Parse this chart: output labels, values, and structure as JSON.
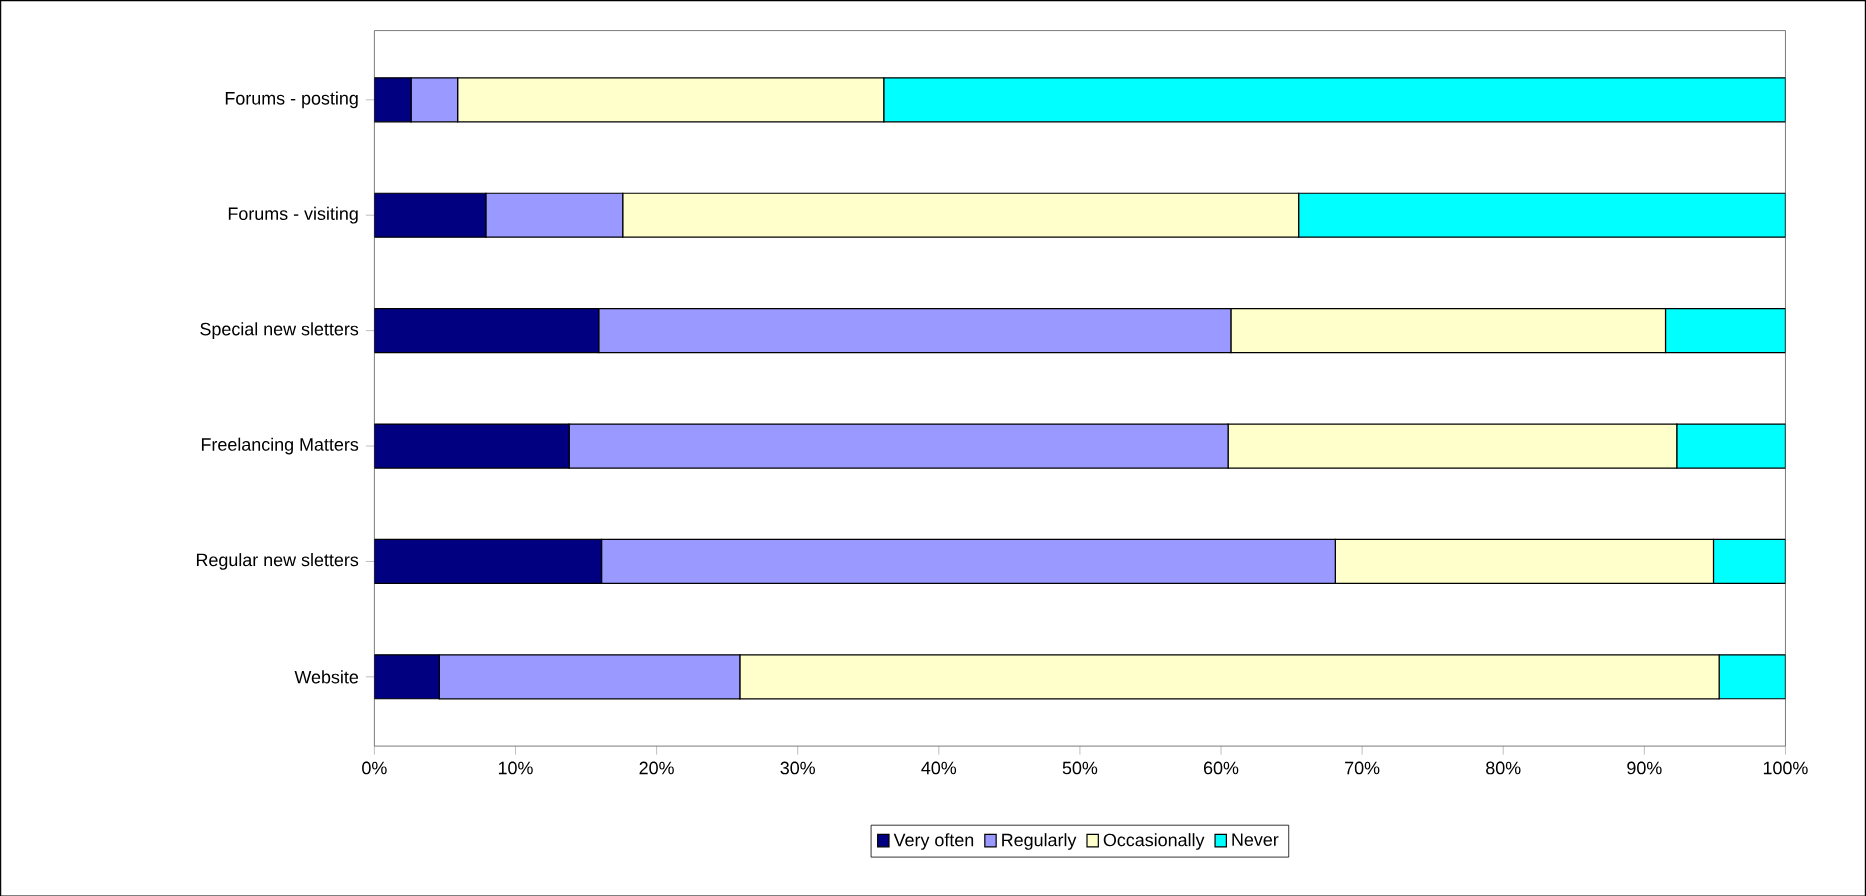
{
  "chart_data": {
    "type": "bar",
    "orientation": "horizontal",
    "stacked": true,
    "categories": [
      "Forums - posting",
      "Forums - visiting",
      "Special new sletters",
      "Freelancing Matters",
      "Regular new sletters",
      "Website"
    ],
    "series": [
      {
        "name": "Very often",
        "color": "#000080",
        "values": [
          2.6,
          7.9,
          15.9,
          13.8,
          16.1,
          4.6
        ]
      },
      {
        "name": "Regularly",
        "color": "#9999ff",
        "values": [
          3.3,
          9.7,
          44.8,
          46.7,
          52.0,
          21.3
        ]
      },
      {
        "name": "Occasionally",
        "color": "#ffffcc",
        "values": [
          30.2,
          47.9,
          30.8,
          31.8,
          26.8,
          69.4
        ]
      },
      {
        "name": "Never",
        "color": "#00ffff",
        "values": [
          63.9,
          34.5,
          8.5,
          7.7,
          5.1,
          4.7
        ]
      }
    ],
    "xlim": [
      0,
      100
    ],
    "xticks": [
      {
        "value": 0,
        "label": "0%"
      },
      {
        "value": 10,
        "label": "10%"
      },
      {
        "value": 20,
        "label": "20%"
      },
      {
        "value": 30,
        "label": "30%"
      },
      {
        "value": 40,
        "label": "40%"
      },
      {
        "value": 50,
        "label": "50%"
      },
      {
        "value": 60,
        "label": "60%"
      },
      {
        "value": 70,
        "label": "70%"
      },
      {
        "value": 80,
        "label": "80%"
      },
      {
        "value": 90,
        "label": "90%"
      },
      {
        "value": 100,
        "label": "100%"
      }
    ],
    "legend": "bottom",
    "grid": false
  }
}
